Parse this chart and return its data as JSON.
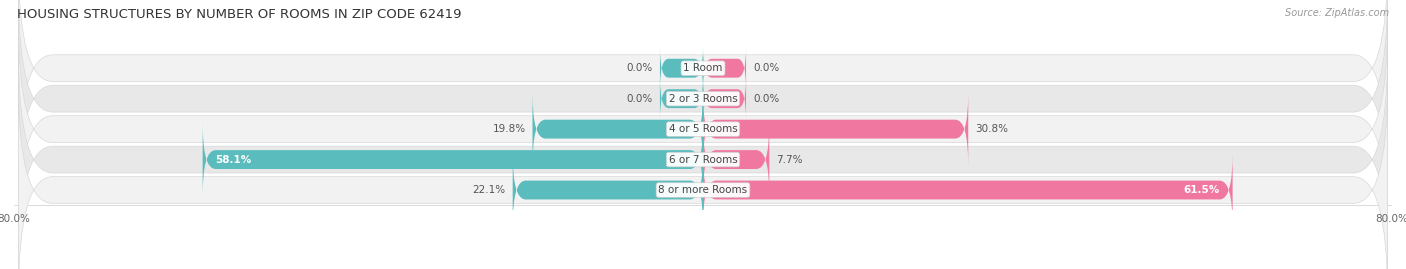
{
  "title": "HOUSING STRUCTURES BY NUMBER OF ROOMS IN ZIP CODE 62419",
  "source": "Source: ZipAtlas.com",
  "categories": [
    "1 Room",
    "2 or 3 Rooms",
    "4 or 5 Rooms",
    "6 or 7 Rooms",
    "8 or more Rooms"
  ],
  "owner_values": [
    0.0,
    0.0,
    19.8,
    58.1,
    22.1
  ],
  "renter_values": [
    0.0,
    0.0,
    30.8,
    7.7,
    61.5
  ],
  "owner_color": "#5abcbd",
  "renter_color": "#f078a0",
  "row_bg_light": "#f2f2f2",
  "row_bg_dark": "#e8e8e8",
  "row_border_color": "#d8d8d8",
  "xlim_left": -80.0,
  "xlim_right": 80.0,
  "bar_height": 0.62,
  "title_fontsize": 9.5,
  "source_fontsize": 7,
  "category_fontsize": 7.5,
  "value_fontsize": 7.5,
  "tick_fontsize": 7.5,
  "legend_fontsize": 8,
  "zero_bar_size": 5.0,
  "owner_label_inside_indices": [
    3
  ],
  "renter_label_inside_indices": [
    4
  ]
}
